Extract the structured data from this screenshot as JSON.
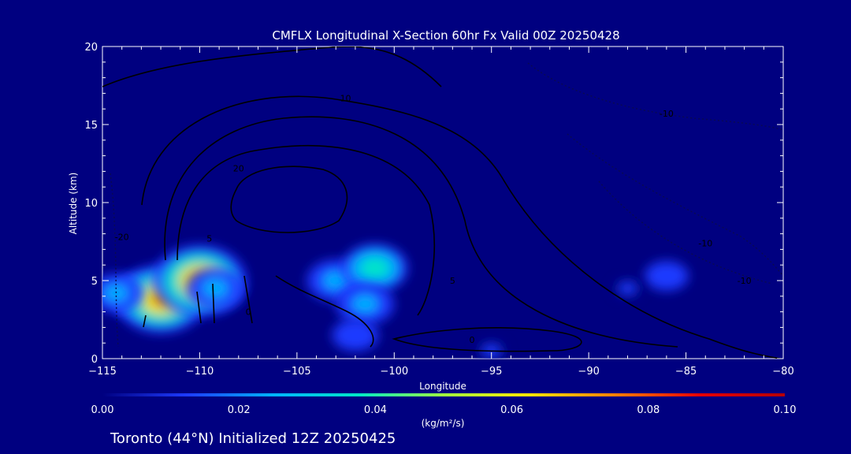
{
  "footer": {
    "caption": "Toronto (44°N) Initialized 12Z 20250425"
  },
  "colorbar": {
    "tick_labels": [
      "0.00",
      "0.02",
      "0.04",
      "0.06",
      "0.08",
      "0.10"
    ],
    "units": "(kg/m²/s)",
    "range": [
      0,
      0.1
    ],
    "colors": [
      "#000080",
      "#1e3cff",
      "#00b4ff",
      "#00e6c8",
      "#a0ff40",
      "#ffe600",
      "#ff8000",
      "#e60000",
      "#b40000"
    ]
  },
  "chart_data": {
    "type": "heatmap",
    "title": "CMFLX Longitudinal X-Section 60hr  Fx Valid 00Z 20250428",
    "xlabel": "Longitude",
    "ylabel": "Altitude (km)",
    "xlim": [
      -115,
      -80
    ],
    "ylim": [
      0,
      20
    ],
    "x_ticks": [
      -115,
      -110,
      -105,
      -100,
      -95,
      -90,
      -85,
      -80
    ],
    "x_tick_labels": [
      "−115",
      "−110",
      "−105",
      "−100",
      "−95",
      "−90",
      "−85",
      "−80"
    ],
    "y_ticks": [
      0,
      5,
      10,
      15,
      20
    ],
    "y_tick_labels": [
      "0",
      "5",
      "10",
      "15",
      "20"
    ],
    "grid": false,
    "flux_blobs": [
      {
        "lon": -113.0,
        "alt": 4.0,
        "value": 0.035
      },
      {
        "lon": -112.0,
        "alt": 3.8,
        "value": 0.07
      },
      {
        "lon": -110.0,
        "alt": 5.0,
        "value": 0.075
      },
      {
        "lon": -109.2,
        "alt": 4.5,
        "value": 0.03
      },
      {
        "lon": -114.3,
        "alt": 4.2,
        "value": 0.025
      },
      {
        "lon": -103.0,
        "alt": 5.0,
        "value": 0.03
      },
      {
        "lon": -101.0,
        "alt": 5.8,
        "value": 0.04
      },
      {
        "lon": -101.5,
        "alt": 3.5,
        "value": 0.03
      },
      {
        "lon": -102.0,
        "alt": 1.5,
        "value": 0.015
      },
      {
        "lon": -86.0,
        "alt": 5.3,
        "value": 0.012
      },
      {
        "lon": -88.0,
        "alt": 4.5,
        "value": 0.008
      },
      {
        "lon": -95.0,
        "alt": 0.5,
        "value": 0.01
      }
    ],
    "contour_labels": [
      {
        "text": "10",
        "lon": -102.5,
        "alt": 16.5
      },
      {
        "text": "20",
        "lon": -108.0,
        "alt": 12.0
      },
      {
        "text": "5",
        "lon": -109.5,
        "alt": 7.5
      },
      {
        "text": "0",
        "lon": -107.5,
        "alt": 2.8
      },
      {
        "text": "5",
        "lon": -97.0,
        "alt": 4.8
      },
      {
        "text": "0",
        "lon": -96.0,
        "alt": 1.0
      },
      {
        "text": "-10",
        "lon": -86.0,
        "alt": 15.5
      },
      {
        "text": "-10",
        "lon": -84.0,
        "alt": 7.2
      },
      {
        "text": "-10",
        "lon": -82.0,
        "alt": 4.8
      },
      {
        "text": "-20",
        "lon": -114.0,
        "alt": 7.6
      }
    ]
  }
}
